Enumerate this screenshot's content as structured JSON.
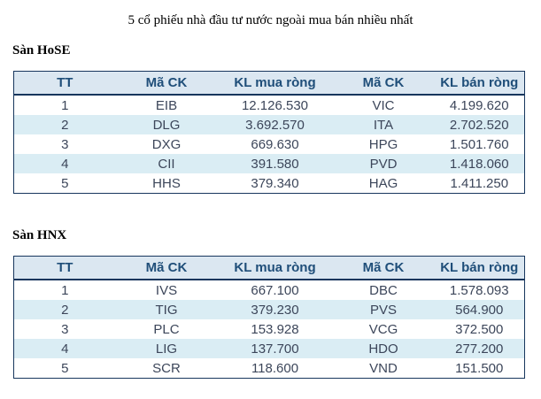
{
  "title": "5 cổ phiếu nhà đầu tư nước ngoài mua bán nhiều nhất",
  "colors": {
    "header_bg": "#dbe7f1",
    "header_text": "#1f4e79",
    "row_alt_bg": "#daedf4",
    "table_border": "#17365d",
    "data_text": "#3c465a"
  },
  "sections": [
    {
      "heading": "Sàn HoSE",
      "table": {
        "columns": [
          "TT",
          "Mã CK",
          "KL mua ròng",
          "Mã CK",
          "KL bán ròng"
        ],
        "rows": [
          [
            "1",
            "EIB",
            "12.126.530",
            "VIC",
            "4.199.620"
          ],
          [
            "2",
            "DLG",
            "3.692.570",
            "ITA",
            "2.702.520"
          ],
          [
            "3",
            "DXG",
            "669.630",
            "HPG",
            "1.501.760"
          ],
          [
            "4",
            "CII",
            "391.580",
            "PVD",
            "1.418.060"
          ],
          [
            "5",
            "HHS",
            "379.340",
            "HAG",
            "1.411.250"
          ]
        ]
      }
    },
    {
      "heading": "Sàn HNX",
      "table": {
        "columns": [
          "TT",
          "Mã CK",
          "KL mua ròng",
          "Mã CK",
          "KL bán ròng"
        ],
        "rows": [
          [
            "1",
            "IVS",
            "667.100",
            "DBC",
            "1.578.093"
          ],
          [
            "2",
            "TIG",
            "379.230",
            "PVS",
            "564.900"
          ],
          [
            "3",
            "PLC",
            "153.928",
            "VCG",
            "372.500"
          ],
          [
            "4",
            "LIG",
            "137.700",
            "HDO",
            "277.200"
          ],
          [
            "5",
            "SCR",
            "118.600",
            "VND",
            "151.500"
          ]
        ]
      }
    }
  ]
}
